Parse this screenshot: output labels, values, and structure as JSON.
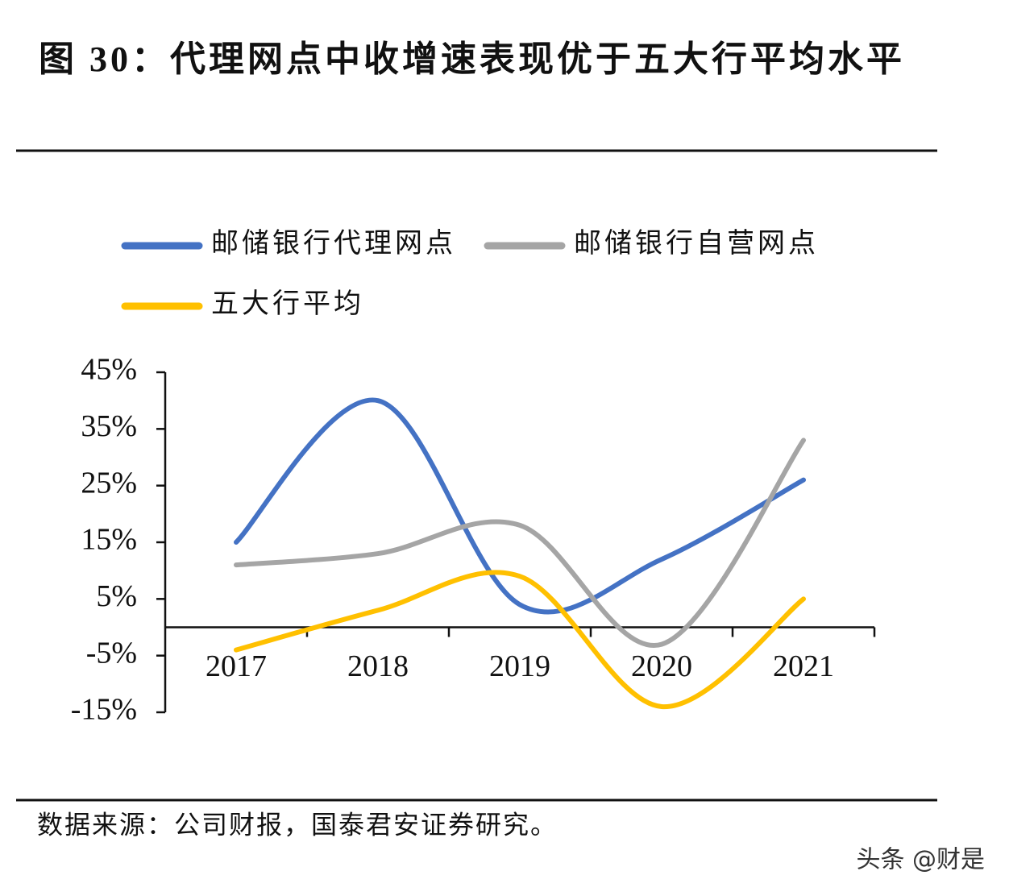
{
  "chart_data": {
    "type": "line",
    "title": "图 30：代理网点中收增速表现优于五大行平均水平",
    "categories": [
      "2017",
      "2018",
      "2019",
      "2020",
      "2021"
    ],
    "series": [
      {
        "name": "邮储银行代理网点",
        "color": "#4472c4",
        "values": [
          15,
          40,
          4,
          12,
          26
        ]
      },
      {
        "name": "邮储银行自营网点",
        "color": "#a5a5a5",
        "values": [
          11,
          13,
          18,
          -3,
          33
        ]
      },
      {
        "name": "五大行平均",
        "color": "#ffc000",
        "values": [
          -4,
          3,
          9,
          -14,
          5
        ]
      }
    ],
    "ylim": [
      -15,
      45
    ],
    "yticks": [
      {
        "value": 45,
        "label": "45%"
      },
      {
        "value": 35,
        "label": "35%"
      },
      {
        "value": 25,
        "label": "25%"
      },
      {
        "value": 15,
        "label": "15%"
      },
      {
        "value": 5,
        "label": "5%"
      },
      {
        "value": -5,
        "label": "-5%"
      },
      {
        "value": -15,
        "label": "-15%"
      }
    ],
    "source": "数据来源：公司财报，国泰君安证券研究。",
    "watermark": "头条 @财是"
  }
}
